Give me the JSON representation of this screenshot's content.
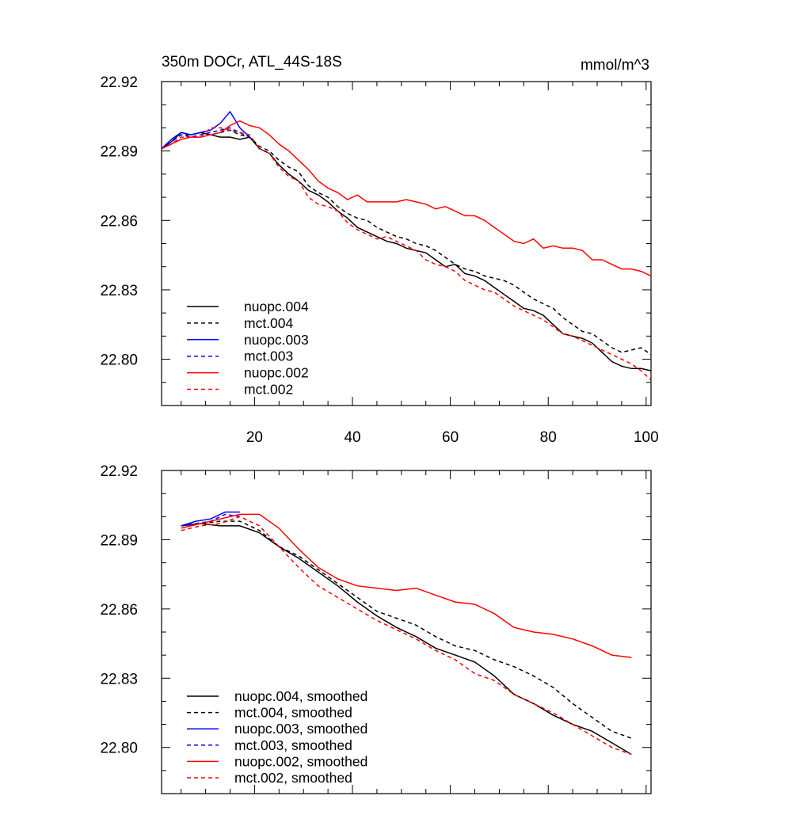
{
  "header": {
    "title": "350m DOCr, ATL_44S-18S",
    "units": "mmol/m^3"
  },
  "chart_data": [
    {
      "type": "line",
      "title": "350m DOCr, ATL_44S-18S",
      "units_label": "mmol/m^3",
      "xlim": [
        1,
        101
      ],
      "ylim": [
        22.78,
        22.92
      ],
      "yticks": [
        22.8,
        22.83,
        22.86,
        22.89,
        22.92
      ],
      "ytick_labels": [
        "22.80",
        "22.83",
        "22.86",
        "22.89",
        "22.92"
      ],
      "xticks": [
        20,
        40,
        60,
        80,
        100
      ],
      "xtick_labels": [
        "20",
        "40",
        "60",
        "80",
        "100"
      ],
      "legend_position": "bottom-left",
      "series": [
        {
          "name": "nuopc.004",
          "color": "#000000",
          "dash": "solid",
          "x": [
            1,
            3,
            5,
            7,
            9,
            11,
            13,
            15,
            17,
            19,
            21,
            23,
            25,
            27,
            29,
            31,
            33,
            35,
            37,
            39,
            41,
            43,
            45,
            47,
            49,
            51,
            53,
            55,
            57,
            59,
            61,
            63,
            65,
            67,
            69,
            71,
            73,
            75,
            77,
            79,
            81,
            83,
            85,
            87,
            89,
            91,
            93,
            95,
            97,
            99,
            101
          ],
          "y": [
            22.891,
            22.894,
            22.898,
            22.897,
            22.898,
            22.897,
            22.896,
            22.896,
            22.895,
            22.896,
            22.891,
            22.889,
            22.884,
            22.88,
            22.877,
            22.873,
            22.871,
            22.868,
            22.864,
            22.861,
            22.857,
            22.855,
            22.853,
            22.851,
            22.85,
            22.848,
            22.847,
            22.846,
            22.843,
            22.84,
            22.841,
            22.837,
            22.836,
            22.834,
            22.831,
            22.828,
            22.825,
            22.822,
            22.821,
            22.819,
            22.815,
            22.811,
            22.81,
            22.809,
            22.807,
            22.803,
            22.799,
            22.797,
            22.796,
            22.796,
            22.795
          ]
        },
        {
          "name": "mct.004",
          "color": "#000000",
          "dash": "dashed",
          "x": [
            1,
            3,
            5,
            7,
            9,
            11,
            13,
            15,
            17,
            19,
            21,
            23,
            25,
            27,
            29,
            31,
            33,
            35,
            37,
            39,
            41,
            43,
            45,
            47,
            49,
            51,
            53,
            55,
            57,
            59,
            61,
            63,
            65,
            67,
            69,
            71,
            73,
            75,
            77,
            79,
            81,
            83,
            85,
            87,
            89,
            91,
            93,
            95,
            97,
            99,
            101
          ],
          "y": [
            22.891,
            22.894,
            22.897,
            22.897,
            22.898,
            22.897,
            22.898,
            22.899,
            22.897,
            22.896,
            22.892,
            22.89,
            22.886,
            22.883,
            22.881,
            22.875,
            22.872,
            22.87,
            22.866,
            22.863,
            22.861,
            22.86,
            22.857,
            22.855,
            22.853,
            22.852,
            22.85,
            22.849,
            22.847,
            22.844,
            22.841,
            22.839,
            22.838,
            22.836,
            22.835,
            22.834,
            22.832,
            22.829,
            22.826,
            22.824,
            22.822,
            22.818,
            22.815,
            22.812,
            22.811,
            22.808,
            22.805,
            22.803,
            22.804,
            22.805,
            22.802
          ]
        },
        {
          "name": "nuopc.003",
          "color": "#0000ff",
          "dash": "solid",
          "x": [
            1,
            3,
            5,
            7,
            9,
            11,
            13,
            15,
            17,
            19
          ],
          "y": [
            22.891,
            22.895,
            22.898,
            22.897,
            22.898,
            22.899,
            22.902,
            22.907,
            22.9,
            22.896
          ]
        },
        {
          "name": "mct.003",
          "color": "#0000ff",
          "dash": "dashed",
          "x": [
            1,
            3,
            5,
            7,
            9,
            11,
            13,
            15,
            17,
            19
          ],
          "y": [
            22.891,
            22.894,
            22.897,
            22.896,
            22.897,
            22.898,
            22.899,
            22.9,
            22.898,
            22.896
          ]
        },
        {
          "name": "nuopc.002",
          "color": "#ff0000",
          "dash": "solid",
          "x": [
            1,
            3,
            5,
            7,
            9,
            11,
            13,
            15,
            17,
            19,
            21,
            23,
            25,
            27,
            29,
            31,
            33,
            35,
            37,
            39,
            41,
            43,
            45,
            47,
            49,
            51,
            53,
            55,
            57,
            59,
            61,
            63,
            65,
            67,
            69,
            71,
            73,
            75,
            77,
            79,
            81,
            83,
            85,
            87,
            89,
            91,
            93,
            95,
            97,
            99,
            101
          ],
          "y": [
            22.891,
            22.893,
            22.895,
            22.896,
            22.896,
            22.897,
            22.898,
            22.901,
            22.903,
            22.901,
            22.9,
            22.897,
            22.893,
            22.89,
            22.886,
            22.882,
            22.877,
            22.874,
            22.872,
            22.869,
            22.871,
            22.868,
            22.868,
            22.868,
            22.868,
            22.869,
            22.868,
            22.867,
            22.865,
            22.866,
            22.864,
            22.862,
            22.862,
            22.86,
            22.857,
            22.854,
            22.851,
            22.85,
            22.852,
            22.848,
            22.849,
            22.848,
            22.848,
            22.847,
            22.843,
            22.843,
            22.841,
            22.839,
            22.839,
            22.838,
            22.836
          ]
        },
        {
          "name": "mct.002",
          "color": "#ff0000",
          "dash": "dashed",
          "x": [
            1,
            3,
            5,
            7,
            9,
            11,
            13,
            15,
            17,
            19,
            21,
            23,
            25,
            27,
            29,
            31,
            33,
            35,
            37,
            39,
            41,
            43,
            45,
            47,
            49,
            51,
            53,
            55,
            57,
            59,
            61,
            63,
            65,
            67,
            69,
            71,
            73,
            75,
            77,
            79,
            81,
            83,
            85,
            87,
            89,
            91,
            93,
            95,
            97,
            99,
            101
          ],
          "y": [
            22.891,
            22.893,
            22.896,
            22.896,
            22.896,
            22.9,
            22.9,
            22.899,
            22.898,
            22.897,
            22.891,
            22.889,
            22.883,
            22.879,
            22.877,
            22.87,
            22.867,
            22.866,
            22.864,
            22.859,
            22.856,
            22.854,
            22.852,
            22.853,
            22.851,
            22.849,
            22.847,
            22.843,
            22.841,
            22.84,
            22.838,
            22.834,
            22.832,
            22.83,
            22.829,
            22.826,
            22.823,
            22.821,
            22.819,
            22.817,
            22.814,
            22.811,
            22.81,
            22.808,
            22.806,
            22.804,
            22.802,
            22.8,
            22.798,
            22.795,
            22.791
          ]
        }
      ]
    },
    {
      "type": "line",
      "title": "",
      "xlim": [
        1,
        101
      ],
      "ylim": [
        22.78,
        22.92
      ],
      "yticks": [
        22.8,
        22.83,
        22.86,
        22.89,
        22.92
      ],
      "ytick_labels": [
        "22.80",
        "22.83",
        "22.86",
        "22.89",
        "22.92"
      ],
      "legend_position": "bottom-left",
      "series": [
        {
          "name": "nuopc.004, smoothed",
          "color": "#000000",
          "dash": "solid",
          "x": [
            5,
            9,
            13,
            17,
            21,
            25,
            29,
            33,
            37,
            41,
            45,
            49,
            53,
            57,
            61,
            65,
            69,
            73,
            77,
            81,
            85,
            89,
            93,
            97
          ],
          "y": [
            22.896,
            22.897,
            22.896,
            22.896,
            22.893,
            22.887,
            22.882,
            22.876,
            22.87,
            22.863,
            22.857,
            22.852,
            22.848,
            22.843,
            22.84,
            22.837,
            22.831,
            22.823,
            22.819,
            22.814,
            22.81,
            22.807,
            22.802,
            22.797
          ]
        },
        {
          "name": "mct.004, smoothed",
          "color": "#000000",
          "dash": "dashed",
          "x": [
            5,
            9,
            13,
            17,
            21,
            25,
            29,
            33,
            37,
            41,
            45,
            49,
            53,
            57,
            61,
            65,
            69,
            73,
            77,
            81,
            85,
            89,
            93,
            97
          ],
          "y": [
            22.896,
            22.897,
            22.898,
            22.898,
            22.894,
            22.887,
            22.883,
            22.877,
            22.871,
            22.865,
            22.859,
            22.856,
            22.853,
            22.848,
            22.844,
            22.842,
            22.838,
            22.835,
            22.831,
            22.826,
            22.819,
            22.813,
            22.807,
            22.804
          ]
        },
        {
          "name": "nuopc.003, smoothed",
          "color": "#0000ff",
          "dash": "solid",
          "x": [
            5,
            8,
            11,
            14,
            17
          ],
          "y": [
            22.896,
            22.898,
            22.899,
            22.902,
            22.902
          ]
        },
        {
          "name": "mct.003, smoothed",
          "color": "#0000ff",
          "dash": "dashed",
          "x": [
            5,
            8,
            11,
            14,
            17
          ],
          "y": [
            22.896,
            22.897,
            22.898,
            22.901,
            22.9
          ]
        },
        {
          "name": "nuopc.002, smoothed",
          "color": "#ff0000",
          "dash": "solid",
          "x": [
            5,
            9,
            13,
            17,
            21,
            25,
            29,
            33,
            37,
            41,
            45,
            49,
            53,
            57,
            61,
            65,
            69,
            73,
            77,
            81,
            85,
            89,
            93,
            97
          ],
          "y": [
            22.895,
            22.897,
            22.899,
            22.901,
            22.901,
            22.895,
            22.886,
            22.878,
            22.873,
            22.87,
            22.869,
            22.868,
            22.869,
            22.866,
            22.863,
            22.862,
            22.858,
            22.852,
            22.85,
            22.849,
            22.847,
            22.844,
            22.84,
            22.839
          ]
        },
        {
          "name": "mct.002, smoothed",
          "color": "#ff0000",
          "dash": "dashed",
          "x": [
            5,
            9,
            13,
            17,
            21,
            25,
            29,
            33,
            37,
            41,
            45,
            49,
            53,
            57,
            61,
            65,
            69,
            73,
            77,
            81,
            85,
            89,
            93,
            97
          ],
          "y": [
            22.894,
            22.896,
            22.897,
            22.9,
            22.896,
            22.887,
            22.878,
            22.87,
            22.865,
            22.86,
            22.855,
            22.851,
            22.847,
            22.842,
            22.838,
            22.832,
            22.829,
            22.823,
            22.819,
            22.815,
            22.81,
            22.805,
            22.8,
            22.797
          ]
        }
      ]
    }
  ]
}
